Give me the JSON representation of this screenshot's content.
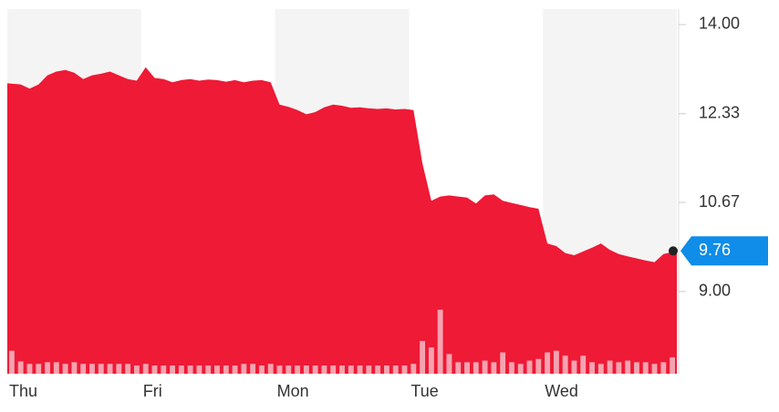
{
  "chart_data": {
    "type": "area",
    "categories": [
      "Thu",
      "Fri",
      "Mon",
      "Tue",
      "Wed"
    ],
    "price": [
      [
        12.9,
        12.88,
        12.8,
        12.88,
        13.05,
        13.12,
        13.15,
        13.1,
        12.98,
        13.05,
        13.08,
        13.12,
        13.05,
        12.98,
        12.95
      ],
      [
        13.2,
        13.0,
        12.98,
        12.92,
        12.96,
        12.98,
        12.95,
        12.97,
        12.96,
        12.93,
        12.96,
        12.92,
        12.95,
        12.96,
        12.92
      ],
      [
        12.5,
        12.46,
        12.4,
        12.32,
        12.36,
        12.45,
        12.5,
        12.48,
        12.44,
        12.45,
        12.43,
        12.42,
        12.43,
        12.41,
        12.42
      ],
      [
        12.4,
        11.4,
        10.7,
        10.78,
        10.8,
        10.78,
        10.76,
        10.65,
        10.8,
        10.82,
        10.7,
        10.66,
        10.62,
        10.58,
        10.55
      ],
      [
        9.9,
        9.85,
        9.72,
        9.68,
        9.75,
        9.82,
        9.9,
        9.78,
        9.7,
        9.66,
        9.62,
        9.58,
        9.55,
        9.7,
        9.76
      ]
    ],
    "volume": [
      [
        28,
        15,
        12,
        12,
        14,
        14,
        12,
        14,
        12,
        12,
        12,
        12,
        12,
        12,
        10
      ],
      [
        12,
        10,
        10,
        10,
        10,
        10,
        10,
        10,
        10,
        10,
        10,
        12,
        12,
        10,
        12
      ],
      [
        10,
        10,
        10,
        10,
        10,
        10,
        10,
        10,
        10,
        10,
        10,
        10,
        10,
        10,
        10
      ],
      [
        12,
        40,
        32,
        78,
        24,
        14,
        14,
        14,
        16,
        14,
        26,
        14,
        12,
        16,
        18
      ],
      [
        26,
        28,
        22,
        16,
        22,
        14,
        12,
        16,
        14,
        16,
        14,
        14,
        12,
        14,
        20
      ]
    ],
    "color": "#ee1a36",
    "volume_color": "#f5a3b0",
    "last_label": "9.76",
    "ylim": [
      7.46,
      14.29
    ],
    "yticks": [
      {
        "value": 14,
        "label": "14.00"
      },
      {
        "value": 12.33,
        "label": "12.33"
      },
      {
        "value": 10.67,
        "label": "10.67"
      },
      {
        "value": 9,
        "label": "9.00"
      }
    ],
    "volume_lim": [
      0,
      100
    ]
  }
}
